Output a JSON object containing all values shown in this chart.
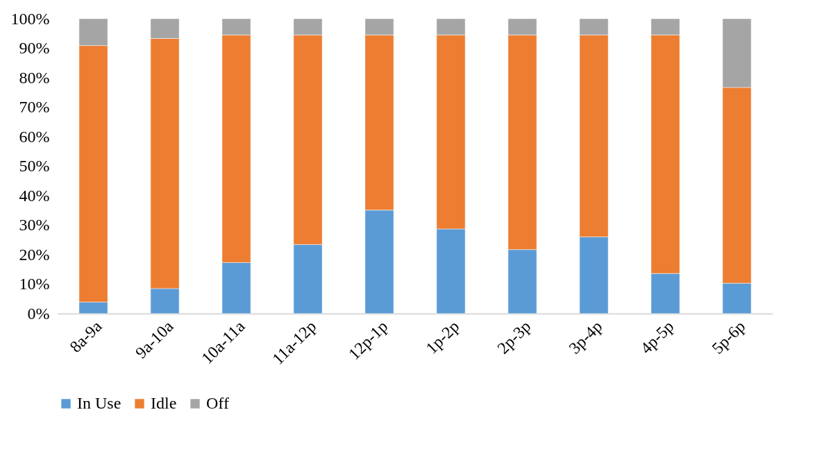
{
  "chart_data": {
    "type": "bar",
    "stacked": true,
    "categories": [
      "8a-9a",
      "9a-10a",
      "10a-11a",
      "11a-12p",
      "12p-1p",
      "1p-2p",
      "2p-3p",
      "3p-4p",
      "4p-5p",
      "5p-6p"
    ],
    "series": [
      {
        "name": "In Use",
        "color": "#5b9bd5",
        "values": [
          3.9,
          8.5,
          17.3,
          23.4,
          35.1,
          28.7,
          21.7,
          26.0,
          13.6,
          10.3
        ]
      },
      {
        "name": "Idle",
        "color": "#ed7d31",
        "values": [
          87.0,
          84.8,
          77.2,
          71.1,
          59.4,
          65.8,
          72.8,
          68.5,
          80.9,
          66.4
        ]
      },
      {
        "name": "Off",
        "color": "#a5a5a5",
        "values": [
          9.1,
          6.7,
          5.5,
          5.5,
          5.5,
          5.5,
          5.5,
          5.5,
          5.5,
          23.3
        ]
      }
    ],
    "ylim": [
      0,
      100
    ],
    "yticks": [
      {
        "value": 0,
        "label": "0%"
      },
      {
        "value": 10,
        "label": "10%"
      },
      {
        "value": 20,
        "label": "20%"
      },
      {
        "value": 30,
        "label": "30%"
      },
      {
        "value": 40,
        "label": "40%"
      },
      {
        "value": 50,
        "label": "50%"
      },
      {
        "value": 60,
        "label": "60%"
      },
      {
        "value": 70,
        "label": "70%"
      },
      {
        "value": 80,
        "label": "80%"
      },
      {
        "value": 90,
        "label": "90%"
      },
      {
        "value": 100,
        "label": "100%"
      }
    ],
    "grid": false,
    "legend": "bottom"
  }
}
